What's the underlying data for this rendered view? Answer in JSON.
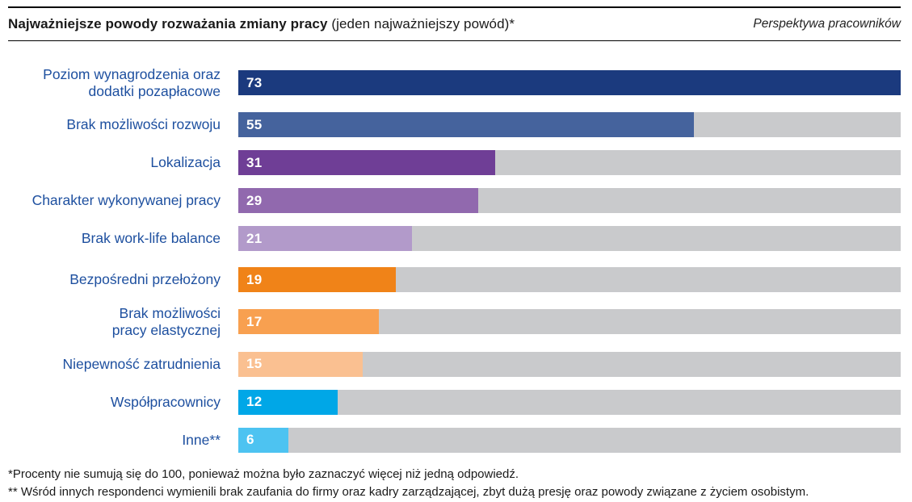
{
  "header": {
    "title_bold": "Najważniejsze powody rozważania zmiany pracy",
    "title_regular": " (jeden najważniejszy powód)*",
    "right_note": "Perspektywa pracowników"
  },
  "chart_data": {
    "type": "bar",
    "orientation": "horizontal",
    "title": "Najważniejsze powody rozważania zmiany pracy (jeden najważniejszy powód)*",
    "subtitle": "Perspektywa pracowników",
    "categories": [
      "Poziom wynagrodzenia oraz dodatki pozapłacowe",
      "Brak możliwości rozwoju",
      "Lokalizacja",
      "Charakter wykonywanej pracy",
      "Brak work-life balance",
      "Bezpośredni przełożony",
      "Brak możliwości pracy elastycznej",
      "Niepewność zatrudnienia",
      "Współpracownicy",
      "Inne**"
    ],
    "values": [
      73,
      55,
      31,
      29,
      21,
      19,
      17,
      15,
      12,
      6
    ],
    "axis_max": 80,
    "grid": false,
    "legend": false,
    "value_labels": "inside-left, white bold",
    "track_color": "#c9cacc",
    "category_label_color": "#1d4f9f",
    "value_label_color": "#ffffff",
    "layout_note": "gray full-length track behind every bar; top bar (73) drawn across full track width; other bar widths proportional to value/80; extra gap before 6th row",
    "bars": [
      {
        "label_lines": [
          "Poziom wynagrodzenia oraz",
          "dodatki pozapłacowe"
        ],
        "value": 73,
        "color": "#1b3a7e",
        "width_pct": 100,
        "group_gap": false
      },
      {
        "label_lines": [
          "Brak możliwości rozwoju"
        ],
        "value": 55,
        "color": "#45639d",
        "width_pct": 68.75,
        "group_gap": false
      },
      {
        "label_lines": [
          "Lokalizacja"
        ],
        "value": 31,
        "color": "#6f3e96",
        "width_pct": 38.75,
        "group_gap": false
      },
      {
        "label_lines": [
          "Charakter wykonywanej pracy"
        ],
        "value": 29,
        "color": "#9169ae",
        "width_pct": 36.25,
        "group_gap": false
      },
      {
        "label_lines": [
          "Brak work-life balance"
        ],
        "value": 21,
        "color": "#b29aca",
        "width_pct": 26.25,
        "group_gap": false
      },
      {
        "label_lines": [
          "Bezpośredni przełożony"
        ],
        "value": 19,
        "color": "#f08318",
        "width_pct": 23.75,
        "group_gap": true
      },
      {
        "label_lines": [
          "Brak możliwości",
          "pracy elastycznej"
        ],
        "value": 17,
        "color": "#f8a050",
        "width_pct": 21.25,
        "group_gap": false
      },
      {
        "label_lines": [
          "Niepewność zatrudnienia"
        ],
        "value": 15,
        "color": "#fac091",
        "width_pct": 18.75,
        "group_gap": false
      },
      {
        "label_lines": [
          "Współpracownicy"
        ],
        "value": 12,
        "color": "#00a7e7",
        "width_pct": 15.0,
        "group_gap": false
      },
      {
        "label_lines": [
          "Inne**"
        ],
        "value": 6,
        "color": "#4dc3f1",
        "width_pct": 7.5,
        "group_gap": false
      }
    ]
  },
  "footnotes": {
    "line1": "*Procenty nie sumują się do 100, ponieważ można było zaznaczyć więcej niż jedną odpowiedź.",
    "line2": "** Wśród innych respondenci wymienili brak zaufania do firmy oraz kadry zarządzającej, zbyt dużą presję oraz powody związane z życiem osobistym."
  }
}
